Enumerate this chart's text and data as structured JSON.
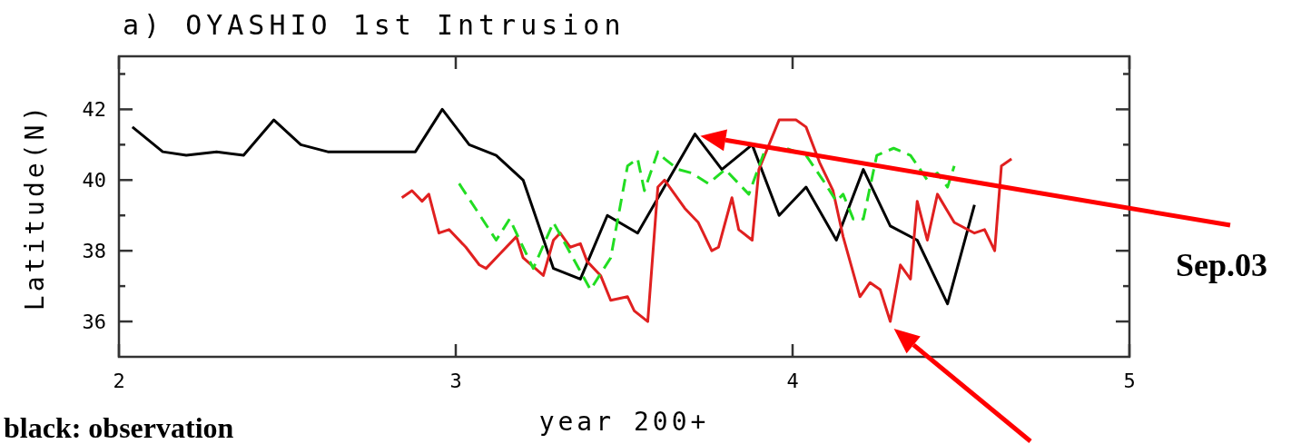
{
  "chart_data": {
    "type": "line",
    "title": "a) OYASHIO 1st Intrusion",
    "xlabel": "year 200+",
    "ylabel": "Latitude(N)",
    "xlim": [
      2,
      5
    ],
    "xticks": [
      2,
      3,
      4,
      5
    ],
    "ylim": [
      35,
      43.5
    ],
    "yticks": [
      {
        "value": 36,
        "label": "36"
      },
      {
        "value": 37,
        "label": null
      },
      {
        "value": 38,
        "label": "38"
      },
      {
        "value": 39,
        "label": null
      },
      {
        "value": 40,
        "label": "40"
      },
      {
        "value": 41,
        "label": null
      },
      {
        "value": 42,
        "label": "42"
      },
      {
        "value": 43,
        "label": null
      }
    ],
    "grid": false,
    "annotations": [
      "Sep.03",
      "black: observation"
    ],
    "series": [
      {
        "color": "#000000",
        "line_style": "solid",
        "x": [
          2.04,
          2.13,
          2.2,
          2.29,
          2.37,
          2.46,
          2.54,
          2.62,
          2.88,
          2.96,
          3.04,
          3.12,
          3.2,
          3.29,
          3.37,
          3.45,
          3.54,
          3.71,
          3.79,
          3.88,
          3.96,
          4.04,
          4.13,
          4.21,
          4.29,
          4.37,
          4.46,
          4.54
        ],
        "values": [
          41.5,
          40.8,
          40.7,
          40.8,
          40.7,
          41.7,
          41.0,
          40.8,
          40.8,
          42.0,
          41.0,
          40.7,
          40.0,
          37.5,
          37.2,
          39.0,
          38.5,
          41.3,
          40.3,
          41.0,
          39.0,
          39.8,
          38.3,
          40.3,
          38.7,
          38.3,
          36.5,
          39.3
        ]
      },
      {
        "color": "#e02020",
        "line_style": "solid",
        "x": [
          2.84,
          2.87,
          2.9,
          2.92,
          2.95,
          2.98,
          3.03,
          3.07,
          3.09,
          3.13,
          3.18,
          3.2,
          3.26,
          3.29,
          3.31,
          3.34,
          3.37,
          3.39,
          3.43,
          3.46,
          3.51,
          3.53,
          3.57,
          3.6,
          3.62,
          3.68,
          3.72,
          3.76,
          3.78,
          3.82,
          3.84,
          3.88,
          3.9,
          3.96,
          4.01,
          4.04,
          4.08,
          4.12,
          4.15,
          4.2,
          4.23,
          4.26,
          4.29,
          4.32,
          4.35,
          4.37,
          4.4,
          4.43,
          4.48,
          4.54,
          4.57,
          4.6,
          4.62,
          4.65
        ],
        "values": [
          39.5,
          39.7,
          39.4,
          39.6,
          38.5,
          38.6,
          38.1,
          37.6,
          37.5,
          37.9,
          38.4,
          37.8,
          37.3,
          38.3,
          38.5,
          38.1,
          38.2,
          37.7,
          37.3,
          36.6,
          36.7,
          36.3,
          36.0,
          39.8,
          40.0,
          39.2,
          38.8,
          38.0,
          38.1,
          39.5,
          38.6,
          38.3,
          40.3,
          41.7,
          41.7,
          41.5,
          40.5,
          39.7,
          38.4,
          36.7,
          37.1,
          36.9,
          36.0,
          37.6,
          37.2,
          39.4,
          38.3,
          39.6,
          38.8,
          38.5,
          38.6,
          38.0,
          40.4,
          40.6
        ]
      },
      {
        "color": "#22dd22",
        "line_style": "dashed",
        "x": [
          3.01,
          3.12,
          3.16,
          3.23,
          3.29,
          3.4,
          3.46,
          3.51,
          3.54,
          3.56,
          3.6,
          3.62,
          3.66,
          3.7,
          3.75,
          3.8,
          3.87,
          3.92,
          3.98,
          4.04,
          4.09,
          4.13,
          4.15,
          4.18,
          4.21,
          4.25,
          4.3,
          4.35,
          4.4,
          4.43,
          4.46,
          4.48
        ],
        "values": [
          39.9,
          38.3,
          38.9,
          37.5,
          38.8,
          36.9,
          37.8,
          40.4,
          40.6,
          39.7,
          40.8,
          40.6,
          40.3,
          40.2,
          39.9,
          40.3,
          39.6,
          40.9,
          40.9,
          40.7,
          40.0,
          39.4,
          39.6,
          38.9,
          38.9,
          40.7,
          40.9,
          40.7,
          40.0,
          40.2,
          39.8,
          40.4
        ]
      }
    ]
  }
}
